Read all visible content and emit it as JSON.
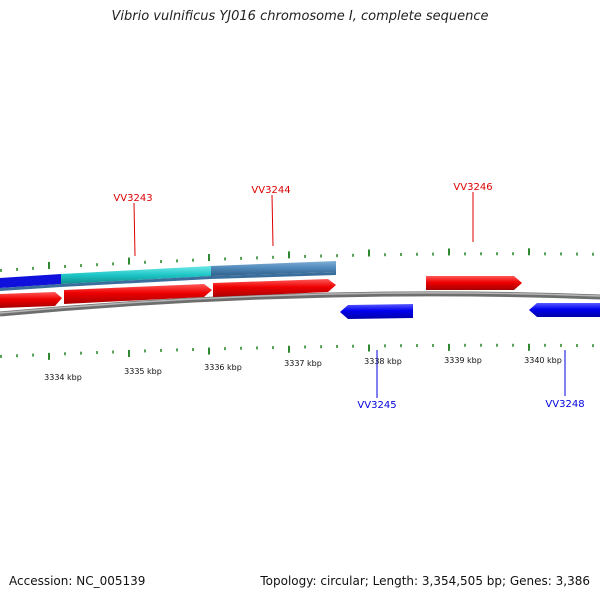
{
  "title": "Vibrio vulnificus YJ016 chromosome I, complete sequence",
  "footer": {
    "accession": "Accession: NC_005139",
    "summary": "Topology: circular; Length: 3,354,505 bp; Genes: 3,386"
  },
  "colors": {
    "forward_gene": "#ee0000",
    "reverse_gene": "#0000ee",
    "cds_steel": "#4d86b7",
    "cds_cyan": "#1ec6c6",
    "backbone": "#8c8c8c",
    "tick": "#2f8a2f"
  },
  "scale_labels": [
    "3334 kbp",
    "3335 kbp",
    "3336 kbp",
    "3337 kbp",
    "3338 kbp",
    "3339 kbp",
    "3340 kbp"
  ],
  "gene_labels": [
    {
      "text": "VV3243",
      "strand": "forward"
    },
    {
      "text": "VV3244",
      "strand": "forward"
    },
    {
      "text": "VV3246",
      "strand": "forward"
    },
    {
      "text": "VV3245",
      "strand": "reverse"
    },
    {
      "text": "VV3248",
      "strand": "reverse"
    }
  ]
}
